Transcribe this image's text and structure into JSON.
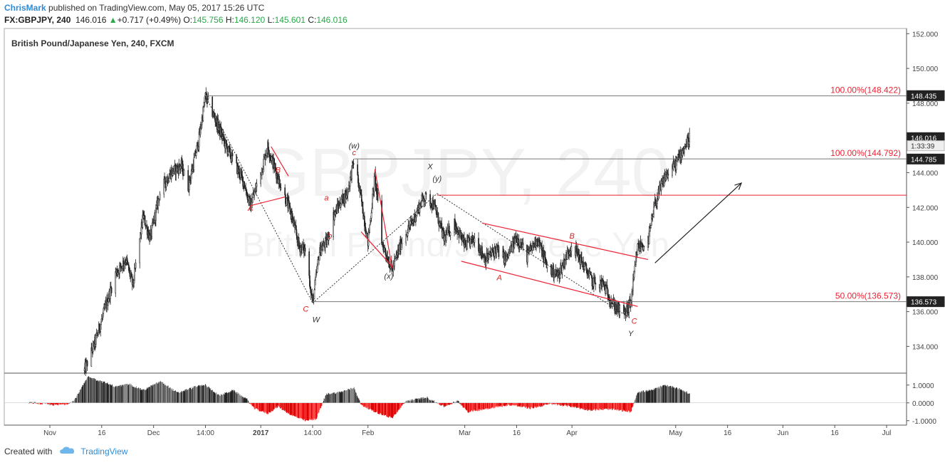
{
  "header": {
    "author": "ChrisMark",
    "published_text": " published on TradingView.com, May 05, 2017 15:26 UTC",
    "symbol": "FX:GBPJPY, 240",
    "last": "146.016",
    "change": "+0.717 (+0.49%)",
    "o_label": "O:",
    "o_value": "145.756",
    "h_label": "H:",
    "h_value": "146.120",
    "l_label": "L:",
    "l_value": "145.601",
    "c_label": "C:",
    "c_value": "146.016"
  },
  "footer": {
    "created_with": "Created with",
    "brand": "TradingView"
  },
  "chart_data": {
    "type": "candlestick",
    "title": "British Pound/Japanese Yen, 240, FXCM",
    "watermark_symbol": "GBPJPY, 240",
    "watermark_name": "British Pound/Japanese Yen",
    "y_range": [
      132.5,
      152.3
    ],
    "y_ticks": [
      134,
      136,
      138,
      140,
      142,
      144,
      146,
      148,
      150,
      152
    ],
    "y_tick_labels": [
      "134.000",
      "136.000",
      "138.000",
      "140.000",
      "142.000",
      "144.000",
      "146.000",
      "148.000",
      "150.000",
      "152.000"
    ],
    "x_ticks": [
      {
        "label": "Nov",
        "t": "2016-11-01",
        "bold": false
      },
      {
        "label": "16",
        "t": "2016-11-16",
        "bold": false
      },
      {
        "label": "Dec",
        "t": "2016-12-01",
        "bold": false
      },
      {
        "label": "14:00",
        "t": "2016-12-16",
        "bold": false
      },
      {
        "label": "2017",
        "t": "2017-01-01",
        "bold": true
      },
      {
        "label": "14:00",
        "t": "2017-01-16",
        "bold": false
      },
      {
        "label": "Feb",
        "t": "2017-02-01",
        "bold": false
      },
      {
        "label": "Mar",
        "t": "2017-03-01",
        "bold": false
      },
      {
        "label": "16",
        "t": "2017-03-16",
        "bold": false
      },
      {
        "label": "Apr",
        "t": "2017-04-01",
        "bold": false
      },
      {
        "label": "May",
        "t": "2017-05-01",
        "bold": false
      },
      {
        "label": "16",
        "t": "2017-05-16",
        "bold": false
      },
      {
        "label": "Jun",
        "t": "2017-06-01",
        "bold": false
      },
      {
        "label": "16",
        "t": "2017-06-16",
        "bold": false
      },
      {
        "label": "Jul",
        "t": "2017-07-01",
        "bold": false
      }
    ],
    "price_path": [
      [
        "2016-11-11",
        132.6
      ],
      [
        "2016-11-14",
        134.2
      ],
      [
        "2016-11-17",
        136.2
      ],
      [
        "2016-11-20",
        138.2
      ],
      [
        "2016-11-23",
        139.0
      ],
      [
        "2016-11-25",
        137.5
      ],
      [
        "2016-11-28",
        141.5
      ],
      [
        "2016-11-30",
        140.2
      ],
      [
        "2016-12-03",
        143.0
      ],
      [
        "2016-12-06",
        144.0
      ],
      [
        "2016-12-09",
        144.4
      ],
      [
        "2016-12-11",
        143.2
      ],
      [
        "2016-12-14",
        145.8
      ],
      [
        "2016-12-16",
        148.4
      ],
      [
        "2016-12-19",
        147.0
      ],
      [
        "2016-12-22",
        145.5
      ],
      [
        "2016-12-25",
        144.3
      ],
      [
        "2016-12-27",
        143.5
      ],
      [
        "2016-12-29",
        142.1
      ],
      [
        "2017-01-01",
        144.0
      ],
      [
        "2017-01-03",
        145.5
      ],
      [
        "2017-01-06",
        143.7
      ],
      [
        "2017-01-08",
        142.6
      ],
      [
        "2017-01-10",
        141.5
      ],
      [
        "2017-01-12",
        139.8
      ],
      [
        "2017-01-14",
        139.5
      ],
      [
        "2017-01-16",
        136.5
      ],
      [
        "2017-01-18",
        139.5
      ],
      [
        "2017-01-20",
        140.0
      ],
      [
        "2017-01-22",
        141.5
      ],
      [
        "2017-01-24",
        142.3
      ],
      [
        "2017-01-26",
        142.8
      ],
      [
        "2017-01-28",
        144.8
      ],
      [
        "2017-01-30",
        142.5
      ],
      [
        "2017-02-01",
        140.0
      ],
      [
        "2017-02-03",
        143.8
      ],
      [
        "2017-02-05",
        140.0
      ],
      [
        "2017-02-08",
        138.4
      ],
      [
        "2017-02-11",
        140.2
      ],
      [
        "2017-02-14",
        141.2
      ],
      [
        "2017-02-17",
        142.6
      ],
      [
        "2017-02-20",
        142.2
      ],
      [
        "2017-02-23",
        140.2
      ],
      [
        "2017-02-26",
        141.1
      ],
      [
        "2017-03-01",
        139.8
      ],
      [
        "2017-03-04",
        140.2
      ],
      [
        "2017-03-07",
        139.0
      ],
      [
        "2017-03-10",
        139.6
      ],
      [
        "2017-03-13",
        139.0
      ],
      [
        "2017-03-16",
        140.3
      ],
      [
        "2017-03-19",
        139.2
      ],
      [
        "2017-03-22",
        140.2
      ],
      [
        "2017-03-25",
        138.5
      ],
      [
        "2017-03-28",
        138.1
      ],
      [
        "2017-04-01",
        139.9
      ],
      [
        "2017-04-04",
        138.8
      ],
      [
        "2017-04-07",
        137.7
      ],
      [
        "2017-04-10",
        137.6
      ],
      [
        "2017-04-13",
        136.4
      ],
      [
        "2017-04-16",
        135.8
      ],
      [
        "2017-04-18",
        136.5
      ],
      [
        "2017-04-20",
        139.7
      ],
      [
        "2017-04-23",
        140.0
      ],
      [
        "2017-04-25",
        142.2
      ],
      [
        "2017-04-28",
        143.8
      ],
      [
        "2017-05-01",
        144.5
      ],
      [
        "2017-05-03",
        145.3
      ],
      [
        "2017-05-05",
        146.0
      ]
    ],
    "fib_levels": [
      {
        "price": 148.422,
        "label": "100.00%(148.422)",
        "from": "2016-12-16",
        "line": "gray"
      },
      {
        "price": 144.792,
        "label": "100.00%(144.792)",
        "from": "2017-01-28",
        "line": "gray"
      },
      {
        "price": 142.7,
        "label": "",
        "from": "2017-02-21",
        "line": "red"
      },
      {
        "price": 136.573,
        "label": "50.00%(136.573)",
        "from": "2017-01-16",
        "line": "gray"
      }
    ],
    "price_badges": [
      {
        "price": 148.435,
        "label": "148.435",
        "style": "dark"
      },
      {
        "price": 146.016,
        "label": "146.016",
        "style": "dark"
      },
      {
        "price": 145.55,
        "label": "1:33:39",
        "style": "light"
      },
      {
        "price": 144.785,
        "label": "144.785",
        "style": "dark"
      },
      {
        "price": 136.573,
        "label": "136.573",
        "style": "dark"
      }
    ],
    "wave_labels": [
      {
        "t": "2017-01-28",
        "p": 145.4,
        "text": "(w)",
        "color": "#333"
      },
      {
        "t": "2017-01-28",
        "p": 145.0,
        "text": "c",
        "color": "#d22"
      },
      {
        "t": "2017-02-21",
        "p": 143.5,
        "text": "(y)",
        "color": "#333"
      },
      {
        "t": "2017-02-19",
        "p": 144.2,
        "text": "X",
        "color": "#333"
      },
      {
        "t": "2017-02-07",
        "p": 137.9,
        "text": "(x)",
        "color": "#333"
      },
      {
        "t": "2017-01-06",
        "p": 144.0,
        "text": "B",
        "color": "#d22"
      },
      {
        "t": "2016-12-29",
        "p": 141.8,
        "text": "A",
        "color": "#d22"
      },
      {
        "t": "2017-01-20",
        "p": 142.4,
        "text": "a",
        "color": "#d22"
      },
      {
        "t": "2017-01-21",
        "p": 140.2,
        "text": "b",
        "color": "#d22"
      },
      {
        "t": "2017-01-14",
        "p": 136.0,
        "text": "C",
        "color": "#d22"
      },
      {
        "t": "2017-01-17",
        "p": 135.4,
        "text": "W",
        "color": "#333"
      },
      {
        "t": "2017-03-11",
        "p": 137.8,
        "text": "A",
        "color": "#d22"
      },
      {
        "t": "2017-04-01",
        "p": 140.2,
        "text": "B",
        "color": "#d22"
      },
      {
        "t": "2017-04-19",
        "p": 135.3,
        "text": "C",
        "color": "#d22"
      },
      {
        "t": "2017-04-18",
        "p": 134.6,
        "text": "Y",
        "color": "#333"
      }
    ],
    "red_lines": [
      [
        [
          "2017-01-04",
          145.5
        ],
        [
          "2017-01-09",
          143.8
        ]
      ],
      [
        [
          "2016-12-29",
          142.1
        ],
        [
          "2017-01-08",
          142.6
        ]
      ],
      [
        [
          "2017-02-03",
          144.2
        ],
        [
          "2017-02-08",
          138.5
        ]
      ],
      [
        [
          "2017-01-30",
          140.6
        ],
        [
          "2017-02-08",
          138.6
        ]
      ],
      [
        [
          "2017-03-06",
          141.1
        ],
        [
          "2017-04-23",
          139.0
        ]
      ],
      [
        [
          "2017-02-28",
          138.9
        ],
        [
          "2017-04-20",
          136.3
        ]
      ]
    ],
    "dotted_lines": [
      [
        [
          "2016-12-16",
          148.4
        ],
        [
          "2017-01-16",
          136.5
        ]
      ],
      [
        [
          "2017-01-16",
          136.5
        ],
        [
          "2017-02-21",
          142.8
        ]
      ],
      [
        [
          "2017-02-21",
          142.8
        ],
        [
          "2017-04-18",
          135.6
        ]
      ]
    ],
    "arrow": [
      [
        "2017-04-25",
        138.8
      ],
      [
        "2017-05-20",
        143.4
      ]
    ],
    "oscillator": {
      "y_ticks": [
        1.0,
        0.0,
        -1.0
      ],
      "y_tick_labels": [
        "1.0000",
        "0.0000",
        "-1.0000"
      ],
      "y_range": [
        -1.25,
        1.55
      ],
      "path": [
        [
          "2016-10-26",
          0.02
        ],
        [
          "2016-11-03",
          -0.12
        ],
        [
          "2016-11-06",
          -0.05
        ],
        [
          "2016-11-08",
          0.12
        ],
        [
          "2016-11-12",
          1.45
        ],
        [
          "2016-11-16",
          1.2
        ],
        [
          "2016-11-20",
          0.9
        ],
        [
          "2016-11-24",
          1.05
        ],
        [
          "2016-11-28",
          0.7
        ],
        [
          "2016-12-03",
          1.2
        ],
        [
          "2016-12-08",
          0.55
        ],
        [
          "2016-12-13",
          0.9
        ],
        [
          "2016-12-16",
          1.0
        ],
        [
          "2016-12-20",
          0.4
        ],
        [
          "2016-12-24",
          0.7
        ],
        [
          "2016-12-28",
          0.2
        ],
        [
          "2016-12-30",
          -0.3
        ],
        [
          "2017-01-03",
          -0.6
        ],
        [
          "2017-01-06",
          -0.2
        ],
        [
          "2017-01-10",
          -0.7
        ],
        [
          "2017-01-14",
          -1.0
        ],
        [
          "2017-01-17",
          -0.9
        ],
        [
          "2017-01-20",
          0.5
        ],
        [
          "2017-01-24",
          0.6
        ],
        [
          "2017-01-28",
          0.85
        ],
        [
          "2017-01-30",
          -0.1
        ],
        [
          "2017-02-03",
          -0.5
        ],
        [
          "2017-02-08",
          -0.85
        ],
        [
          "2017-02-12",
          0.1
        ],
        [
          "2017-02-18",
          0.3
        ],
        [
          "2017-02-23",
          -0.2
        ],
        [
          "2017-02-27",
          0.1
        ],
        [
          "2017-03-02",
          -0.5
        ],
        [
          "2017-03-08",
          -0.3
        ],
        [
          "2017-03-14",
          -0.1
        ],
        [
          "2017-03-20",
          -0.3
        ],
        [
          "2017-03-26",
          -0.05
        ],
        [
          "2017-04-01",
          -0.2
        ],
        [
          "2017-04-06",
          -0.4
        ],
        [
          "2017-04-12",
          -0.35
        ],
        [
          "2017-04-18",
          -0.5
        ],
        [
          "2017-04-20",
          0.6
        ],
        [
          "2017-04-24",
          0.7
        ],
        [
          "2017-04-28",
          1.0
        ],
        [
          "2017-05-02",
          0.8
        ],
        [
          "2017-05-05",
          0.5
        ]
      ]
    }
  }
}
